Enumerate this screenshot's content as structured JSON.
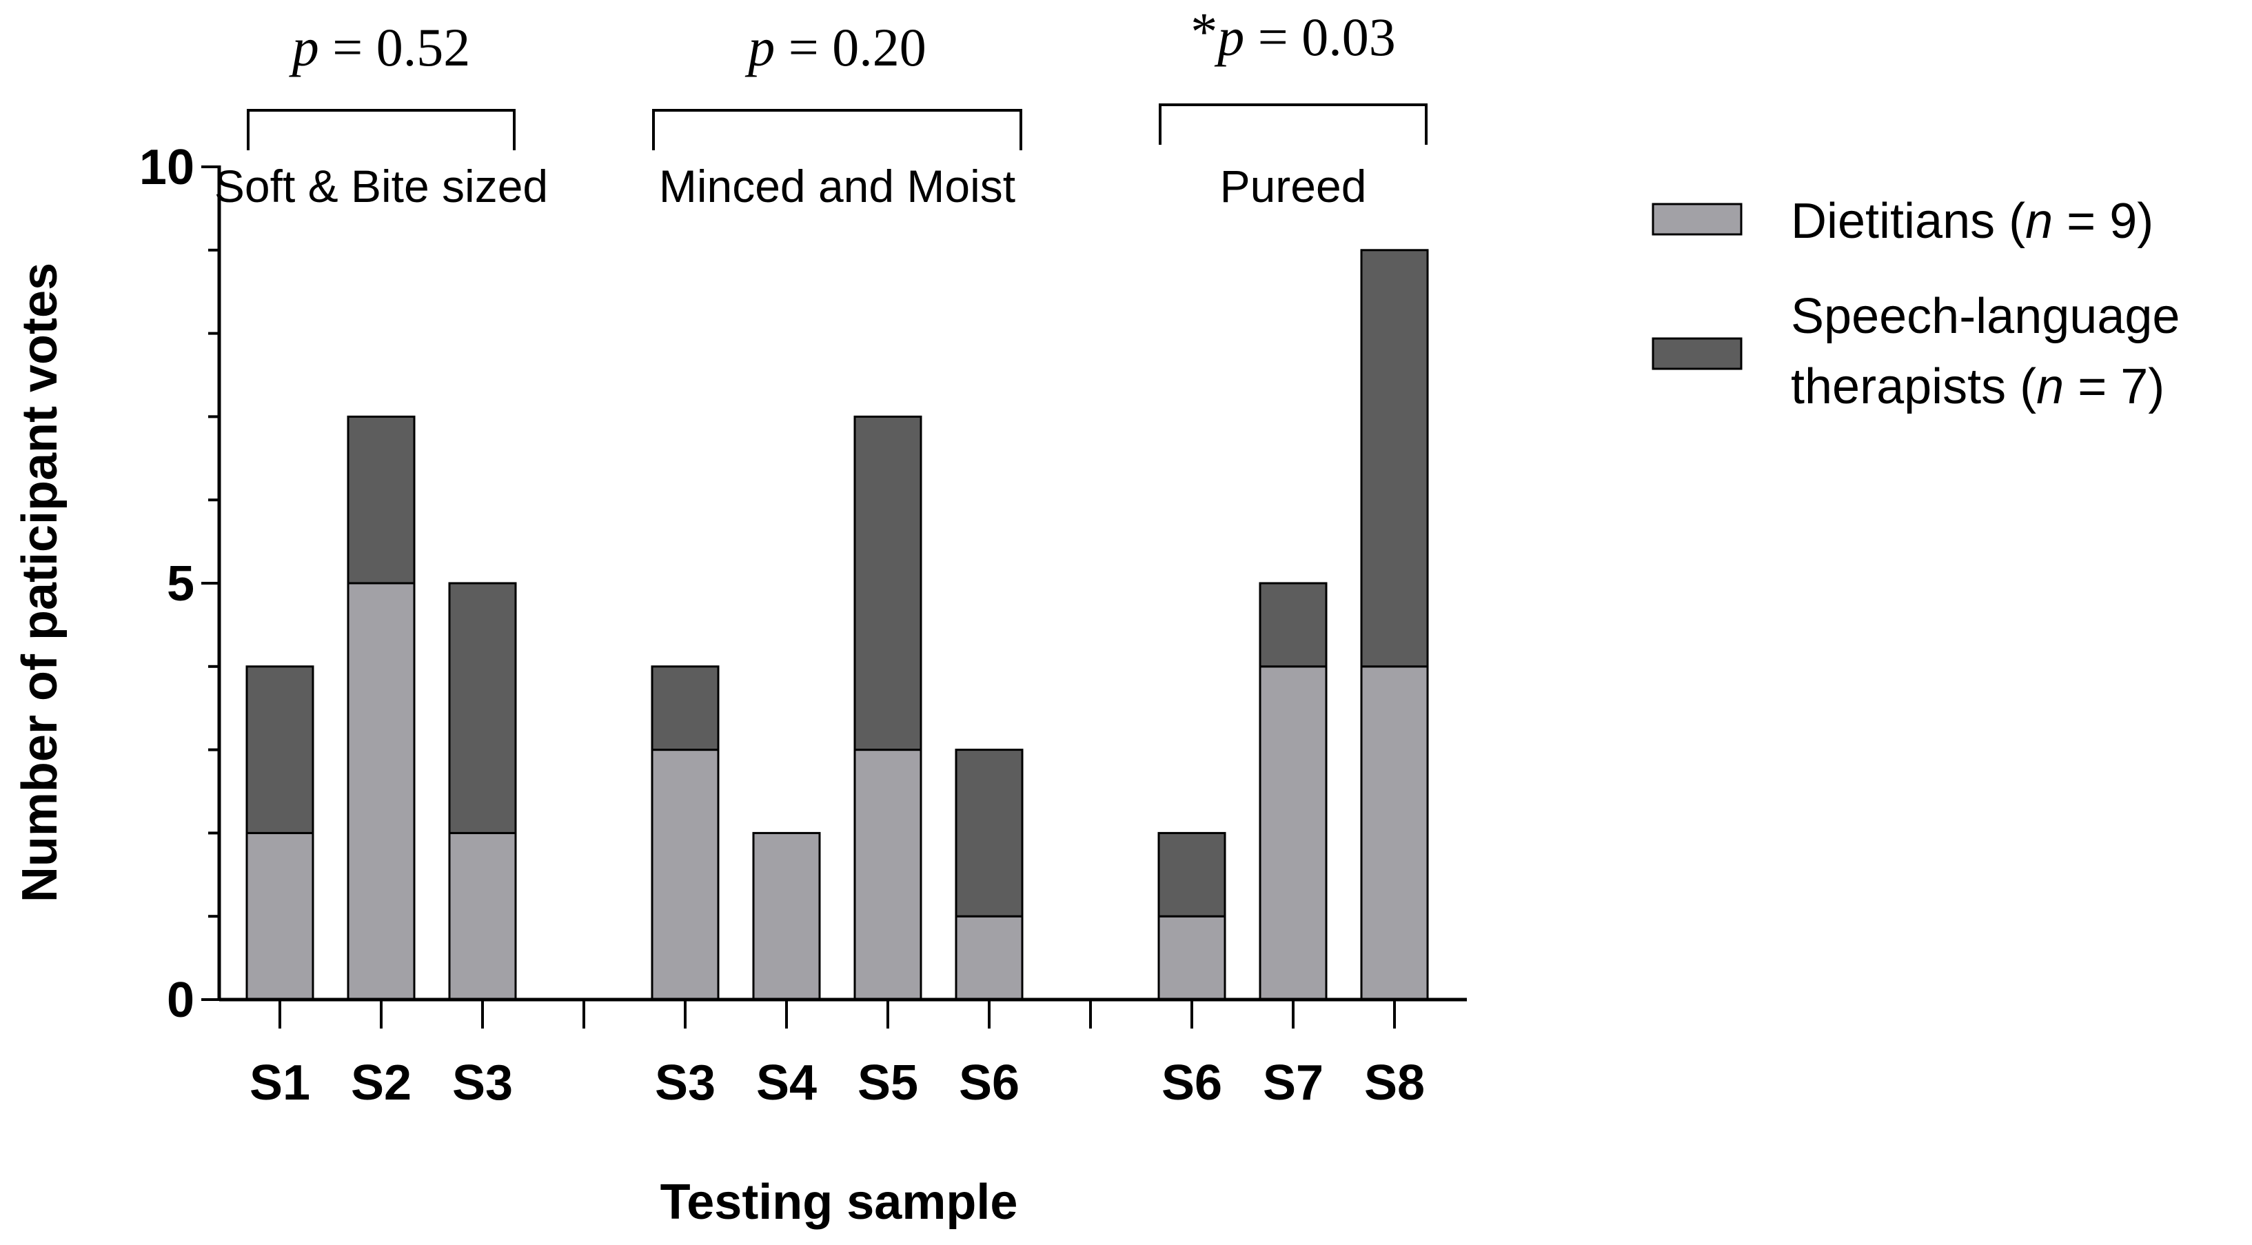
{
  "chart_data": {
    "type": "bar",
    "stacked": true,
    "xlabel": "Testing sample",
    "ylabel": "Number of paticipant votes",
    "ylim": [
      0,
      10
    ],
    "yticks": [
      "0",
      "5",
      "10"
    ],
    "groups": [
      {
        "label": "Soft & Bite sized",
        "pvalue": "p = 0.52",
        "pvalue_prefix": "",
        "categories": [
          "S1",
          "S2",
          "S3"
        ]
      },
      {
        "label": "Minced and Moist",
        "pvalue": "p = 0.20",
        "pvalue_prefix": "",
        "categories": [
          "S3",
          "S4",
          "S5",
          "S6"
        ]
      },
      {
        "label": "Pureed",
        "pvalue": "p = 0.03",
        "pvalue_prefix": "*",
        "categories": [
          "S6",
          "S7",
          "S8"
        ]
      }
    ],
    "categories": [
      "S1",
      "S2",
      "S3",
      "S3",
      "S4",
      "S5",
      "S6",
      "S6",
      "S7",
      "S8"
    ],
    "series": [
      {
        "name": "Dietitians",
        "n_label": "(n = 9)",
        "color": "#a2a1a6",
        "values": [
          2,
          5,
          2,
          3,
          2,
          3,
          1,
          1,
          4,
          4
        ]
      },
      {
        "name": "Speech-language therapists",
        "n_label": "(n = 7)",
        "color": "#5d5d5d",
        "values": [
          2,
          2,
          3,
          1,
          0,
          4,
          2,
          1,
          1,
          5
        ]
      }
    ],
    "legend": {
      "entries": [
        {
          "line1": "Dietitians (n = 9)",
          "line2": ""
        },
        {
          "line1": "Speech-language",
          "line2": "therapists (n = 7)"
        }
      ],
      "placement": "right"
    }
  }
}
